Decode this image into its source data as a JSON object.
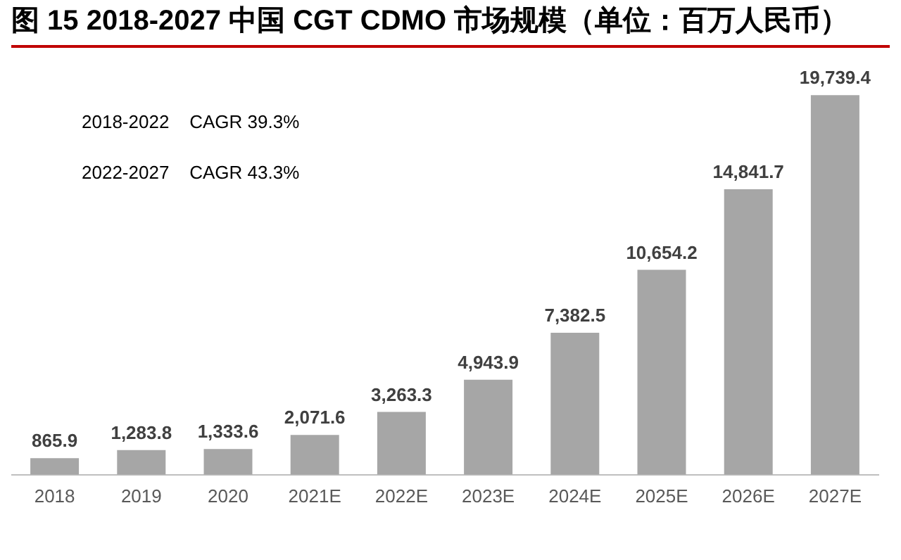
{
  "chart_data": {
    "type": "bar",
    "title": "图 15 2018-2027 中国 CGT CDMO 市场规模（单位：百万人民币）",
    "categories": [
      "2018",
      "2019",
      "2020",
      "2021E",
      "2022E",
      "2023E",
      "2024E",
      "2025E",
      "2026E",
      "2027E"
    ],
    "values": [
      865.9,
      1283.8,
      1333.6,
      2071.6,
      3263.3,
      4943.9,
      7382.5,
      10654.2,
      14841.7,
      19739.4
    ],
    "value_labels": [
      "865.9",
      "1,283.8",
      "1,333.6",
      "2,071.6",
      "3,263.3",
      "4,943.9",
      "7,382.5",
      "10,654.2",
      "14,841.7",
      "19,739.4"
    ],
    "color": "#a6a6a6",
    "annotations": [
      "2018-2022    CAGR 39.3%",
      "2022-2027    CAGR 43.3%"
    ],
    "tick_labels": "x",
    "grid": false,
    "legend": false
  }
}
